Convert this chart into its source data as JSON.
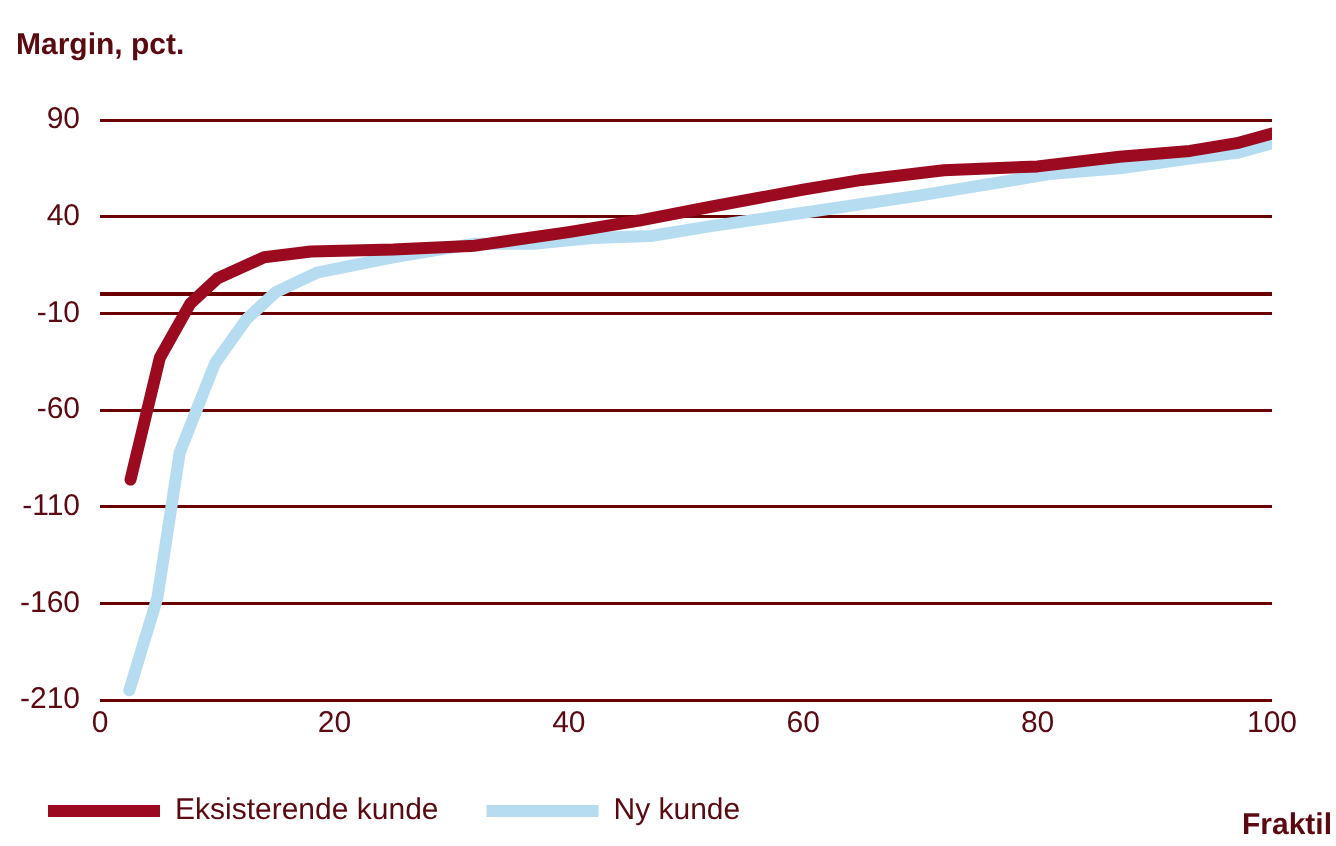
{
  "chart_data": {
    "type": "line",
    "ylabel": "Margin, pct.",
    "xlabel": "Fraktil",
    "xlim": [
      0,
      100
    ],
    "xticks": [
      0,
      20,
      40,
      60,
      80,
      100
    ],
    "ylim": [
      -210,
      90
    ],
    "yticks": [
      -210,
      -160,
      -110,
      -60,
      -10,
      40,
      90
    ],
    "grid": "y",
    "legend": "bottom",
    "marker": "none",
    "line_style": "solid",
    "ref_lines": [
      {
        "axis": "y",
        "value": 0,
        "color": "#6b0000"
      }
    ],
    "series": [
      {
        "name": "Eksisterende kunde",
        "color": "#9b0a1e",
        "x": [
          2.6,
          5.1,
          7.7,
          10,
          14,
          18,
          25,
          32,
          40,
          46,
          52,
          60,
          65,
          72,
          80,
          87,
          93,
          97,
          100
        ],
        "values": [
          -96,
          -33,
          -5,
          8,
          19,
          22,
          23,
          25,
          32,
          38,
          45,
          54,
          59,
          64,
          66,
          71,
          74,
          78,
          83
        ]
      },
      {
        "name": "Ny kunde",
        "color": "#b6dcf2",
        "x": [
          2.5,
          4.9,
          6.8,
          9.8,
          12.5,
          15,
          18.5,
          25,
          32,
          37,
          42,
          47,
          52,
          60,
          70,
          81,
          87,
          93,
          97,
          100
        ],
        "values": [
          -205,
          -157,
          -82,
          -36,
          -13,
          1,
          11,
          19,
          26,
          26,
          29,
          30,
          35,
          42,
          51,
          62,
          65,
          70,
          73,
          78
        ]
      }
    ]
  }
}
